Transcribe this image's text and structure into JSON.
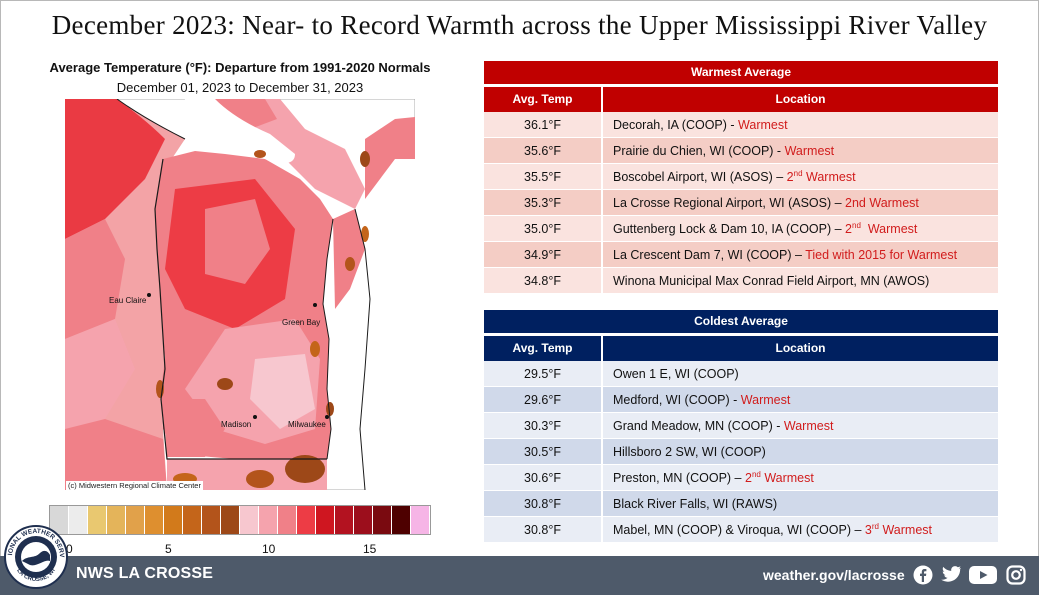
{
  "title": "December 2023:  Near- to Record Warmth across the Upper Mississippi River Valley",
  "map": {
    "title": "Average Temperature (°F): Departure from 1991-2020 Normals",
    "subtitle": "December 01, 2023 to December 31, 2023",
    "cities": [
      "Eau Claire",
      "Green Bay",
      "Madison",
      "Milwaukee"
    ],
    "credit": "(c) Midwestern Regional Climate Center"
  },
  "legend": {
    "colors": [
      "#d8d8d8",
      "#ececec",
      "#e9c870",
      "#e4b45a",
      "#e1a14a",
      "#de8f2f",
      "#d27a1b",
      "#c4651a",
      "#b3541b",
      "#9d4818",
      "#f7c7cf",
      "#f5a3ad",
      "#f08088",
      "#ed3c45",
      "#cf1620",
      "#b31220",
      "#9c0e1c",
      "#7a0a10",
      "#4e0000",
      "#f6b5e6"
    ],
    "ticks": [
      "0",
      "5",
      "10",
      "15"
    ]
  },
  "warmest": {
    "header": "Warmest  Average",
    "col_temp": "Avg. Temp",
    "col_loc": "Location",
    "rows": [
      {
        "temp": "36.1°F",
        "loc": "Decorah, IA (COOP) - ",
        "note": "Warmest",
        "sup": "",
        "note2": ""
      },
      {
        "temp": "35.6°F",
        "loc": "Prairie du Chien, WI (COOP) - ",
        "note": "Warmest",
        "sup": "",
        "note2": ""
      },
      {
        "temp": "35.5°F",
        "loc": "Boscobel Airport, WI (ASOS) – ",
        "note": "2",
        "sup": "nd",
        "note2": " Warmest"
      },
      {
        "temp": "35.3°F",
        "loc": "La Crosse Regional Airport, WI (ASOS) – ",
        "note": "2nd Warmest",
        "sup": "",
        "note2": ""
      },
      {
        "temp": "35.0°F",
        "loc": "Guttenberg Lock & Dam 10, IA (COOP) – ",
        "note": "2",
        "sup": "nd",
        "note2": "  Warmest"
      },
      {
        "temp": "34.9°F",
        "loc": "La Crescent Dam 7, WI (COOP) – ",
        "note": "Tied with 2015  for Warmest",
        "sup": "",
        "note2": ""
      },
      {
        "temp": "34.8°F",
        "loc": "Winona Municipal Max  Conrad Field Airport, MN (AWOS)",
        "note": "",
        "sup": "",
        "note2": ""
      }
    ]
  },
  "coldest": {
    "header": "Coldest Average",
    "col_temp": "Avg. Temp",
    "col_loc": "Location",
    "rows": [
      {
        "temp": "29.5°F",
        "loc": "Owen 1 E, WI (COOP)",
        "note": "",
        "sup": "",
        "note2": ""
      },
      {
        "temp": "29.6°F",
        "loc": "Medford, WI (COOP) - ",
        "note": "Warmest",
        "sup": "",
        "note2": ""
      },
      {
        "temp": "30.3°F",
        "loc": "Grand Meadow, MN (COOP) - ",
        "note": "Warmest",
        "sup": "",
        "note2": ""
      },
      {
        "temp": "30.5°F",
        "loc": "Hillsboro 2 SW, WI (COOP)",
        "note": "",
        "sup": "",
        "note2": ""
      },
      {
        "temp": "30.6°F",
        "loc": "Preston, MN (COOP) – ",
        "note": "2",
        "sup": "nd",
        "note2": " Warmest"
      },
      {
        "temp": "30.8°F",
        "loc": "Black River Falls, WI (RAWS)",
        "note": "",
        "sup": "",
        "note2": ""
      },
      {
        "temp": "30.8°F",
        "loc": "Mabel, MN (COOP) & Viroqua, WI (COOP) – ",
        "note": "3",
        "sup": "rd",
        "note2": " Warmest"
      }
    ]
  },
  "colors": {
    "warm_header": "#c00000",
    "warm_row_a": "#fae3df",
    "warm_row_b": "#f4cdc5",
    "cold_header": "#002060",
    "cold_row_a": "#e9edf5",
    "cold_row_b": "#d0d9ea",
    "footer": "#4e5a6a",
    "note": "#d11c1c"
  },
  "footer": {
    "name": "NWS LA CROSSE",
    "url": "weather.gov/lacrosse",
    "logo_text": "NATIONAL WEATHER SERVICE · LA CROSSE, WI",
    "social_icons": [
      "facebook-icon",
      "twitter-icon",
      "youtube-icon",
      "instagram-icon"
    ]
  }
}
